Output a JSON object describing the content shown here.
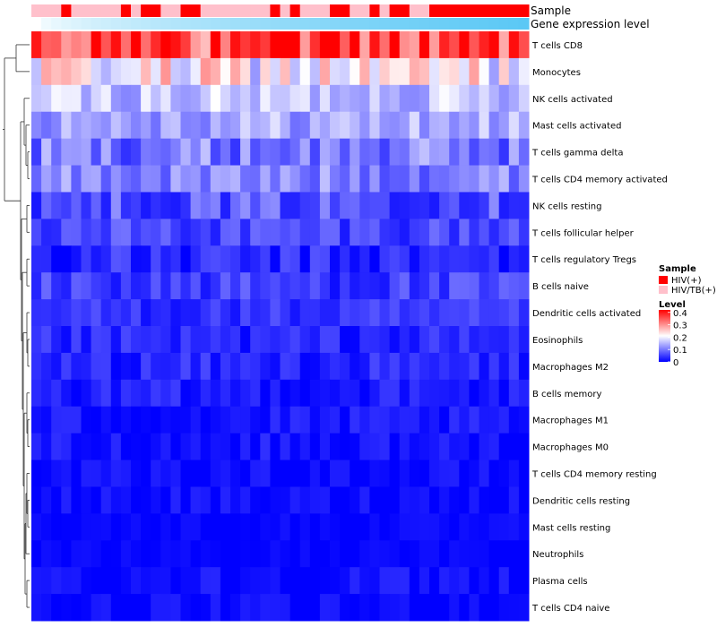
{
  "chart_data": {
    "type": "heatmap",
    "title": "",
    "rows": [
      "T cells CD8",
      "Monocytes",
      "NK cells activated",
      "Mast cells activated",
      "T cells gamma delta",
      "T cells CD4 memory activated",
      "NK cells resting",
      "T cells follicular helper",
      "T cells regulatory  Tregs",
      "B cells naive",
      "Dendritic cells activated",
      "Eosinophils",
      "Macrophages M2",
      "B cells memory",
      "Macrophages M1",
      "Macrophages M0",
      "T cells CD4 memory resting",
      "Dendritic cells resting",
      "Mast cells resting",
      "Neutrophils",
      "Plasma cells",
      "T cells CD4 naive"
    ],
    "n_columns": 50,
    "annotations": {
      "sample_label": "Sample",
      "expression_label": "Gene expression level",
      "sample_groups": [
        "HIV/TB(+)",
        "HIV/TB(+)",
        "HIV/TB(+)",
        "HIV(+)",
        "HIV/TB(+)",
        "HIV/TB(+)",
        "HIV/TB(+)",
        "HIV/TB(+)",
        "HIV/TB(+)",
        "HIV(+)",
        "HIV/TB(+)",
        "HIV(+)",
        "HIV(+)",
        "HIV/TB(+)",
        "HIV/TB(+)",
        "HIV(+)",
        "HIV(+)",
        "HIV/TB(+)",
        "HIV/TB(+)",
        "HIV/TB(+)",
        "HIV/TB(+)",
        "HIV/TB(+)",
        "HIV/TB(+)",
        "HIV/TB(+)",
        "HIV(+)",
        "HIV/TB(+)",
        "HIV(+)",
        "HIV/TB(+)",
        "HIV/TB(+)",
        "HIV/TB(+)",
        "HIV(+)",
        "HIV(+)",
        "HIV/TB(+)",
        "HIV/TB(+)",
        "HIV(+)",
        "HIV/TB(+)",
        "HIV(+)",
        "HIV(+)",
        "HIV/TB(+)",
        "HIV/TB(+)",
        "HIV(+)",
        "HIV(+)",
        "HIV(+)",
        "HIV(+)",
        "HIV(+)",
        "HIV(+)",
        "HIV(+)",
        "HIV(+)",
        "HIV(+)",
        "HIV(+)"
      ],
      "expression_range": [
        0,
        1
      ]
    },
    "legend": {
      "sample_title": "Sample",
      "sample_entries": [
        {
          "label": "HIV(+)",
          "color": "#ff0000"
        },
        {
          "label": "HIV/TB(+)",
          "color": "#ffc0cb"
        }
      ],
      "level_title": "Level",
      "level_ticks": [
        "0.4",
        "0.3",
        "0.2",
        "0.1",
        "0"
      ],
      "level_range": [
        0,
        0.42
      ],
      "position": "right"
    },
    "colors": {
      "low": "#0000ff",
      "mid": "#ffffff",
      "high": "#ff0000",
      "expr_low": "#ffffff",
      "expr_high": "#5bc8f5"
    },
    "row_means": [
      0.33,
      0.21,
      0.16,
      0.14,
      0.1,
      0.11,
      0.07,
      0.06,
      0.03,
      0.05,
      0.04,
      0.03,
      0.03,
      0.02,
      0.015,
      0.015,
      0.008,
      0.01,
      0.005,
      0.004,
      0.012,
      0.006
    ],
    "row_spread": [
      0.08,
      0.09,
      0.05,
      0.05,
      0.06,
      0.05,
      0.05,
      0.04,
      0.04,
      0.04,
      0.03,
      0.03,
      0.03,
      0.03,
      0.025,
      0.025,
      0.02,
      0.02,
      0.012,
      0.01,
      0.025,
      0.02
    ]
  }
}
